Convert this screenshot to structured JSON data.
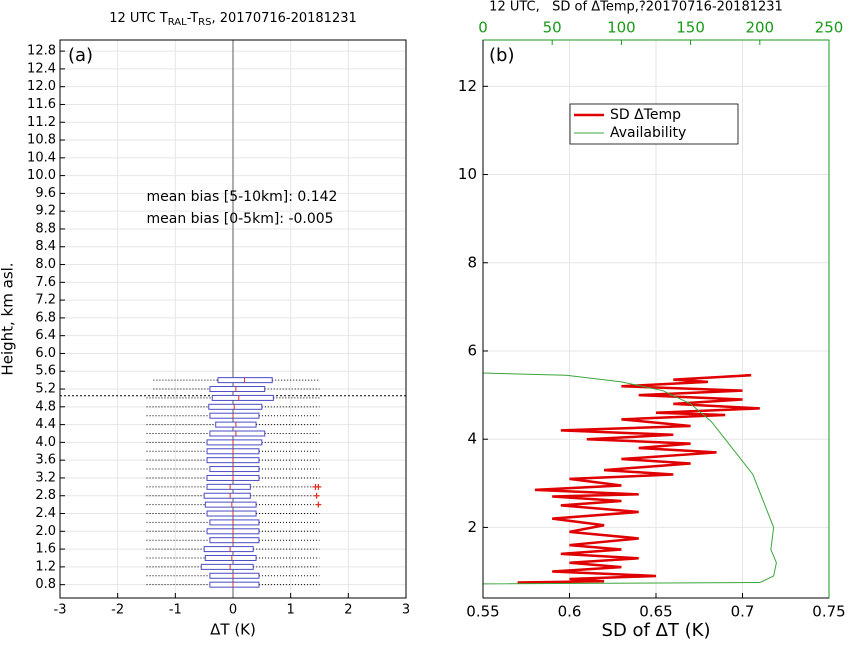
{
  "chart_data": [
    {
      "type": "box",
      "panel_label": "(a)",
      "title_parts": [
        "12 UTC T",
        "RAL",
        "-T",
        "RS",
        ", 20170716-20181231"
      ],
      "xlabel": "ΔT (K)",
      "ylabel": "Height, km asl.",
      "annotations": [
        "mean bias [5-10km]: 0.142",
        "mean bias [0-5km]: -0.005"
      ],
      "xlim": [
        -3,
        3
      ],
      "xticks": [
        -3,
        -2,
        -1,
        0,
        1,
        2,
        3
      ],
      "ylim": [
        0.5,
        13.05
      ],
      "yticks": [
        0.8,
        1.2,
        1.6,
        {
          "value": 2,
          "label": "2.0"
        },
        2.4,
        2.8,
        3.2,
        3.6,
        {
          "value": 4,
          "label": "4.0"
        },
        4.4,
        4.8,
        5.2,
        5.6,
        {
          "value": 6,
          "label": "6.0"
        },
        6.4,
        6.8,
        7.2,
        7.6,
        {
          "value": 8,
          "label": "8.0"
        },
        8.4,
        8.8,
        9.2,
        9.6,
        {
          "value": 10,
          "label": "10.0"
        },
        10.4,
        10.8,
        11.2,
        11.6,
        {
          "value": 12,
          "label": "12.0"
        },
        12.4,
        12.8
      ],
      "grid": true,
      "box_color": "#4b4bc8",
      "median_color": "#e0301e",
      "outlier_color": "#e0301e",
      "reference_line": 5.05,
      "heights": [
        0.8,
        1.0,
        1.2,
        1.4,
        1.6,
        1.8,
        2.0,
        2.2,
        2.4,
        2.6,
        2.8,
        3.0,
        3.2,
        3.4,
        3.6,
        3.8,
        4.0,
        4.2,
        4.4,
        4.6,
        4.8,
        5.0,
        5.2,
        5.4
      ],
      "q1": [
        -0.4,
        -0.4,
        -0.55,
        -0.48,
        -0.5,
        -0.4,
        -0.45,
        -0.4,
        -0.45,
        -0.48,
        -0.5,
        -0.45,
        -0.45,
        -0.4,
        -0.45,
        -0.45,
        -0.45,
        -0.4,
        -0.3,
        -0.4,
        -0.42,
        -0.36,
        -0.4,
        -0.26
      ],
      "median": [
        0,
        0,
        -0.05,
        -0.02,
        -0.05,
        0,
        0,
        0,
        0,
        -0.02,
        -0.05,
        -0.05,
        0,
        0,
        0,
        0,
        0,
        0.05,
        0.05,
        0,
        0.02,
        0.1,
        0.05,
        0.2
      ],
      "q3": [
        0.45,
        0.45,
        0.35,
        0.4,
        0.35,
        0.45,
        0.45,
        0.45,
        0.4,
        0.4,
        0.3,
        0.3,
        0.45,
        0.45,
        0.45,
        0.45,
        0.5,
        0.55,
        0.4,
        0.45,
        0.5,
        0.7,
        0.55,
        0.68
      ],
      "whislo": [
        -1.5,
        -1.5,
        -1.5,
        -1.5,
        -1.5,
        -1.5,
        -1.5,
        -1.5,
        -1.5,
        -1.5,
        -1.5,
        -1.5,
        -1.5,
        -1.5,
        -1.5,
        -1.5,
        -1.5,
        -1.5,
        -1.5,
        -1.5,
        -1.5,
        -1.5,
        -1.38,
        -1.38
      ],
      "whishi": [
        1.5,
        1.5,
        1.5,
        1.5,
        1.5,
        1.5,
        1.5,
        1.5,
        1.5,
        1.4,
        1.4,
        1.4,
        1.5,
        1.5,
        1.5,
        1.5,
        1.5,
        1.5,
        1.5,
        1.5,
        1.5,
        1.5,
        1.5,
        1.5
      ],
      "outlier_heights": [
        2.6,
        2.8,
        3.0,
        3.0
      ],
      "outlier_values": [
        1.48,
        1.45,
        1.43,
        1.48
      ]
    },
    {
      "type": "line",
      "panel_label": "(b)",
      "title": "12 UTC,   SD of ΔTemp,?20170716-20181231",
      "xlabel": "SD of ΔT (K)",
      "xlim": [
        0.55,
        0.75
      ],
      "xticks": [
        0.55,
        0.6,
        0.65,
        0.7,
        0.75
      ],
      "x2lim": [
        0,
        250
      ],
      "x2ticks": [
        0,
        50,
        100,
        150,
        200,
        250
      ],
      "x2_color": "#1a9a1a",
      "ylim": [
        0.4,
        13.05
      ],
      "yticks": [
        2,
        4,
        6,
        8,
        10,
        12
      ],
      "grid": true,
      "legend": "upper-center",
      "series": [
        {
          "name": "SD ΔTemp",
          "color": "#e00000",
          "heights": [
            0.75,
            0.78,
            0.83,
            0.9,
            1.0,
            1.1,
            1.2,
            1.3,
            1.4,
            1.5,
            1.6,
            1.75,
            1.9,
            2.05,
            2.2,
            2.35,
            2.5,
            2.6,
            2.7,
            2.75,
            2.85,
            2.95,
            3.1,
            3.2,
            3.3,
            3.45,
            3.55,
            3.7,
            3.8,
            3.9,
            4.0,
            4.1,
            4.2,
            4.3,
            4.45,
            4.55,
            4.6,
            4.7,
            4.8,
            4.9,
            5.0,
            5.1,
            5.2,
            5.3,
            5.35,
            5.45,
            5.42
          ],
          "values": [
            0.57,
            0.62,
            0.6,
            0.65,
            0.59,
            0.63,
            0.6,
            0.64,
            0.595,
            0.63,
            0.6,
            0.64,
            0.6,
            0.62,
            0.59,
            0.64,
            0.595,
            0.63,
            0.59,
            0.64,
            0.58,
            0.63,
            0.6,
            0.66,
            0.62,
            0.67,
            0.63,
            0.685,
            0.64,
            0.67,
            0.61,
            0.66,
            0.595,
            0.67,
            0.63,
            0.69,
            0.65,
            0.71,
            0.66,
            0.7,
            0.64,
            0.7,
            0.63,
            0.68,
            0.66,
            0.705,
            0.69
          ]
        },
        {
          "name": "Availability",
          "color": "#3aa63a",
          "axis": "x2",
          "heights": [
            0.72,
            0.75,
            0.9,
            1.2,
            1.5,
            2.0,
            2.4,
            2.8,
            3.2,
            3.6,
            4.0,
            4.4,
            4.8,
            5.1,
            5.3,
            5.45,
            5.5
          ],
          "values": [
            0,
            200,
            210,
            212,
            208,
            210,
            205,
            200,
            195,
            185,
            175,
            165,
            150,
            130,
            100,
            60,
            0
          ]
        }
      ]
    }
  ]
}
